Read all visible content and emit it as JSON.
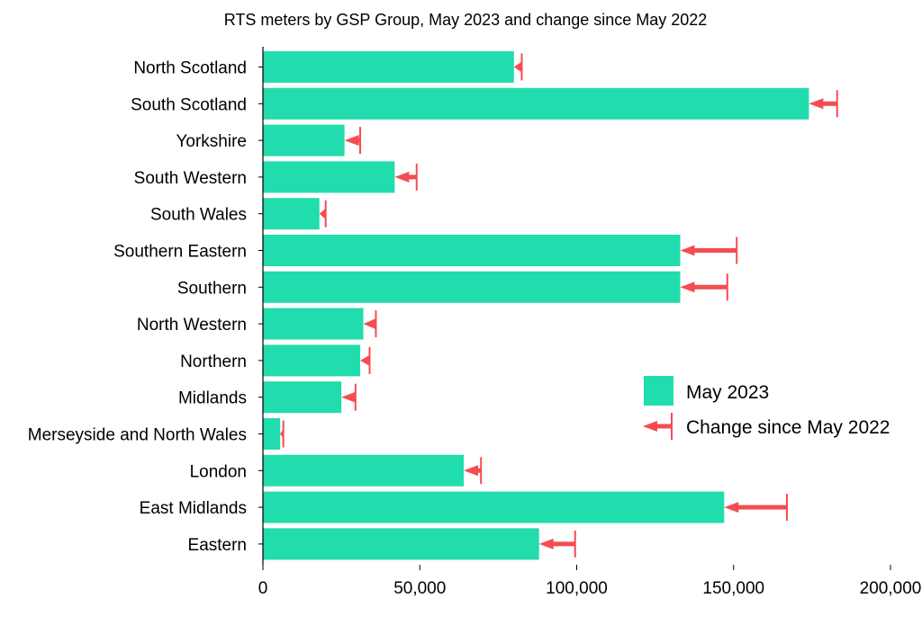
{
  "chart_data": {
    "type": "bar",
    "orientation": "horizontal",
    "title": "RTS meters by GSP Group, May 2023 and change since May 2022",
    "xlabel": "",
    "ylabel": "",
    "xlim": [
      0,
      200000
    ],
    "x_ticks": [
      0,
      50000,
      100000,
      150000,
      200000
    ],
    "x_tick_labels": [
      "0",
      "50,000",
      "100,000",
      "150,000",
      "200,000"
    ],
    "grid": false,
    "legend_position": "right",
    "categories": [
      "North Scotland",
      "South Scotland",
      "Yorkshire",
      "South Western",
      "South Wales",
      "Southern Eastern",
      "Southern",
      "North Western",
      "Northern",
      "Midlands",
      "Merseyside and North Wales",
      "London",
      "East Midlands",
      "Eastern"
    ],
    "series": [
      {
        "name": "May 2023",
        "type": "bar",
        "color": "#21dcac",
        "values": [
          80000,
          174000,
          26000,
          42000,
          18000,
          133000,
          133000,
          32000,
          31000,
          25000,
          5500,
          64000,
          147000,
          88000
        ]
      },
      {
        "name": "Change since May 2022",
        "type": "arrow",
        "color": "#f54c52",
        "from_values": [
          82500,
          183000,
          31000,
          49000,
          20000,
          151000,
          148000,
          36000,
          34000,
          29500,
          6500,
          69500,
          167000,
          99500
        ],
        "to_values": [
          80000,
          174000,
          26000,
          42000,
          18000,
          133000,
          133000,
          32000,
          31000,
          25000,
          5500,
          64000,
          147000,
          88000
        ],
        "values": [
          -2500,
          -9000,
          -5000,
          -7000,
          -2000,
          -18000,
          -15000,
          -4000,
          -3000,
          -4500,
          -1000,
          -5500,
          -20000,
          -11500
        ]
      }
    ]
  }
}
